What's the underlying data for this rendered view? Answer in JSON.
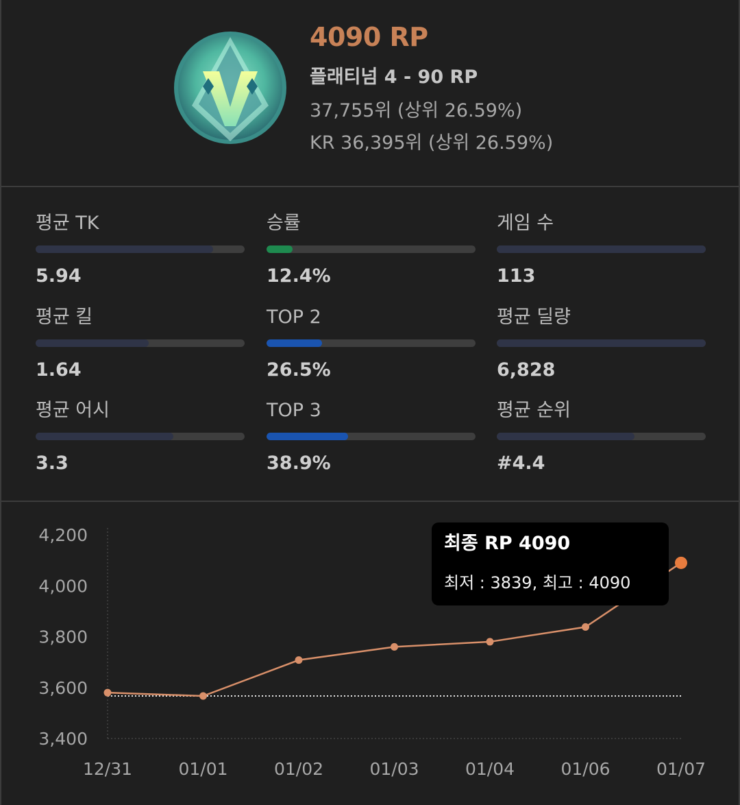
{
  "header": {
    "rp": "4090 RP",
    "tier": "플래티넘 4 - 90 RP",
    "rank": "37,755위 (상위 26.59%)",
    "kr_rank": "KR 36,395위 (상위 26.59%)",
    "emblem_icon": "platinum-tier-emblem",
    "accent_color": "#c88257"
  },
  "stats": [
    {
      "label": "평균 TK",
      "value": "5.94",
      "fill": 0.85,
      "color": "#2f3447"
    },
    {
      "label": "승률",
      "value": "12.4%",
      "fill": 0.124,
      "color": "#1e8a4f"
    },
    {
      "label": "게임 수",
      "value": "113",
      "fill": 1.0,
      "color": "#2f3447"
    },
    {
      "label": "평균 킬",
      "value": "1.64",
      "fill": 0.54,
      "color": "#2f3447"
    },
    {
      "label": "TOP 2",
      "value": "26.5%",
      "fill": 0.265,
      "color": "#1a54b0"
    },
    {
      "label": "평균 딜량",
      "value": "6,828",
      "fill": 1.0,
      "color": "#2f3447"
    },
    {
      "label": "평균 어시",
      "value": "3.3",
      "fill": 0.66,
      "color": "#2f3447"
    },
    {
      "label": "TOP 3",
      "value": "38.9%",
      "fill": 0.389,
      "color": "#1a54b0"
    },
    {
      "label": "평균 순위",
      "value": "#4.4",
      "fill": 0.66,
      "color": "#2f3447"
    }
  ],
  "tooltip": {
    "title": "최종 RP 4090",
    "detail": "최저 : 3839, 최고 : 4090"
  },
  "chart_data": {
    "type": "line",
    "x": [
      "12/31",
      "01/01",
      "01/02",
      "01/03",
      "01/04",
      "01/06",
      "01/07"
    ],
    "series": [
      {
        "values": [
          3580,
          3567,
          3708,
          3760,
          3780,
          3838,
          4090
        ]
      }
    ],
    "yticks": [
      "4,200",
      "4,000",
      "3,800",
      "3,600",
      "3,400"
    ],
    "ylim": [
      3400,
      4200
    ],
    "baseline": 3567,
    "line_color": "#d9906a",
    "last_point_color": "#e87c3e",
    "grid": false
  }
}
